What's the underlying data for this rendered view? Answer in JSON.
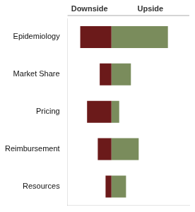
{
  "chart_data": {
    "type": "bar",
    "orientation": "horizontal",
    "stacked": true,
    "categories": [
      "Epidemiology",
      "Market Share",
      "Pricing",
      "Reimbursement",
      "Resources"
    ],
    "series": [
      {
        "name": "Downside",
        "color": "#6b1a1a",
        "values": [
          -3.2,
          -1.2,
          -2.5,
          -1.4,
          -0.6
        ]
      },
      {
        "name": "Upside",
        "color": "#7a8c5c",
        "values": [
          5.8,
          2.0,
          0.8,
          2.8,
          1.5
        ]
      }
    ],
    "xlim": [
      -4.5,
      8.0
    ],
    "grid": false,
    "tick_labels": "y"
  }
}
